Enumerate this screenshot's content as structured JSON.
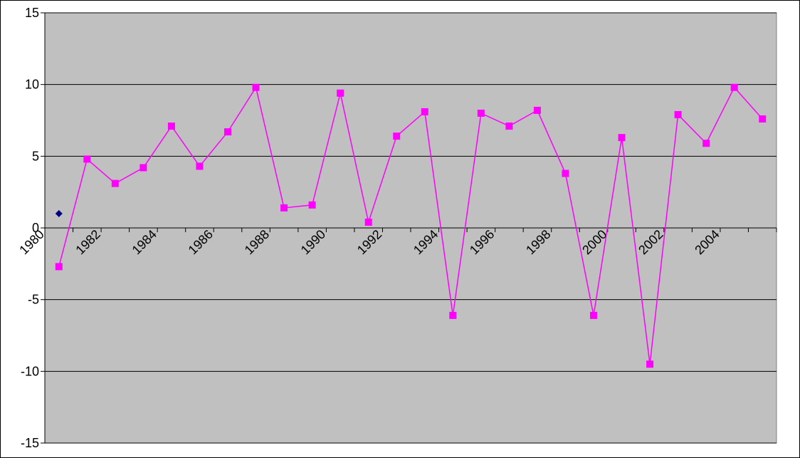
{
  "chart_data": {
    "type": "line",
    "title": "",
    "xlabel": "",
    "ylabel": "",
    "ylim": [
      -15,
      15
    ],
    "yticks": [
      15,
      10,
      5,
      0,
      -5,
      -10,
      -15
    ],
    "x_tick_labels": [
      "1980",
      "1982",
      "1984",
      "1986",
      "1988",
      "1990",
      "1992",
      "1994",
      "1996",
      "1998",
      "2000",
      "2002",
      "2004"
    ],
    "x_categories": [
      1980,
      1981,
      1982,
      1983,
      1984,
      1985,
      1986,
      1987,
      1988,
      1989,
      1990,
      1991,
      1992,
      1993,
      1994,
      1995,
      1996,
      1997,
      1998,
      1999,
      2000,
      2001,
      2002,
      2003,
      2004,
      2005
    ],
    "grid": true,
    "legend": "none",
    "plot_background": "#c0c0c0",
    "series": [
      {
        "color": "#ff00ff",
        "marker": "square",
        "values": [
          -2.7,
          4.8,
          3.1,
          4.2,
          7.1,
          4.3,
          6.7,
          9.8,
          1.4,
          1.6,
          9.4,
          0.4,
          6.4,
          8.1,
          -6.1,
          8.0,
          7.1,
          8.2,
          3.8,
          -6.1,
          6.3,
          -9.5,
          7.9,
          5.9,
          9.8,
          7.6
        ]
      },
      {
        "color": "#000080",
        "marker": "diamond",
        "points": [
          {
            "x": 1980,
            "y": 1.0
          }
        ]
      }
    ]
  }
}
